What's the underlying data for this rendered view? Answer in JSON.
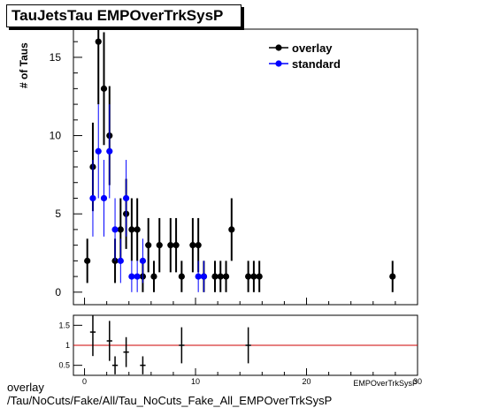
{
  "title": "TauJetsTau EMPOverTrkSysP",
  "footer": {
    "line1": "overlay",
    "line2": "/Tau/NoCuts/Fake/All/Tau_NoCuts_Fake_All_EMPOverTrkSysP"
  },
  "colors": {
    "overlay": "#000000",
    "standard": "#0000ff",
    "ratio_line": "#cc0000"
  },
  "chart_data": [
    {
      "type": "scatter",
      "ylabel": "# of Taus",
      "xlabel": "EMPOverTrkSysP",
      "xlim": [
        -1,
        30
      ],
      "ylim": [
        -0.8,
        16.8
      ],
      "xticks": [
        0,
        10,
        20,
        30
      ],
      "yticks": [
        0,
        5,
        10,
        15
      ],
      "legend": {
        "placement": "top-right",
        "entries": [
          "overlay",
          "standard"
        ]
      },
      "series": [
        {
          "name": "overlay",
          "points": [
            {
              "x": 0.25,
              "y": 2
            },
            {
              "x": 0.75,
              "y": 8
            },
            {
              "x": 1.25,
              "y": 16
            },
            {
              "x": 1.75,
              "y": 13
            },
            {
              "x": 2.25,
              "y": 10
            },
            {
              "x": 2.75,
              "y": 2
            },
            {
              "x": 3.25,
              "y": 4
            },
            {
              "x": 3.75,
              "y": 5
            },
            {
              "x": 4.25,
              "y": 4
            },
            {
              "x": 4.75,
              "y": 4
            },
            {
              "x": 5.25,
              "y": 1
            },
            {
              "x": 5.75,
              "y": 3
            },
            {
              "x": 6.25,
              "y": 1
            },
            {
              "x": 6.75,
              "y": 3
            },
            {
              "x": 7.75,
              "y": 3
            },
            {
              "x": 8.25,
              "y": 3
            },
            {
              "x": 8.75,
              "y": 1
            },
            {
              "x": 9.75,
              "y": 3
            },
            {
              "x": 10.25,
              "y": 3
            },
            {
              "x": 10.75,
              "y": 1
            },
            {
              "x": 11.75,
              "y": 1
            },
            {
              "x": 12.25,
              "y": 1
            },
            {
              "x": 12.75,
              "y": 1
            },
            {
              "x": 13.25,
              "y": 4
            },
            {
              "x": 14.75,
              "y": 1
            },
            {
              "x": 15.25,
              "y": 1
            },
            {
              "x": 15.75,
              "y": 1
            },
            {
              "x": 27.75,
              "y": 1
            }
          ]
        },
        {
          "name": "standard",
          "points": [
            {
              "x": 0.75,
              "y": 6
            },
            {
              "x": 1.25,
              "y": 9
            },
            {
              "x": 1.75,
              "y": 6
            },
            {
              "x": 2.25,
              "y": 9
            },
            {
              "x": 2.75,
              "y": 4
            },
            {
              "x": 3.25,
              "y": 2
            },
            {
              "x": 3.75,
              "y": 6
            },
            {
              "x": 4.25,
              "y": 1
            },
            {
              "x": 4.75,
              "y": 1
            },
            {
              "x": 5.25,
              "y": 2
            },
            {
              "x": 10.25,
              "y": 1
            },
            {
              "x": 10.75,
              "y": 1
            }
          ]
        }
      ]
    },
    {
      "type": "scatter",
      "xlim": [
        -1,
        30
      ],
      "ylim": [
        0.25,
        1.75
      ],
      "xticks": [
        0,
        10,
        20,
        30
      ],
      "yticks": [
        0.5,
        1,
        1.5
      ],
      "reference_line": 1,
      "series": [
        {
          "name": "",
          "points": [
            {
              "x": 0.75,
              "y": 1.33
            },
            {
              "x": 2.25,
              "y": 1.11
            },
            {
              "x": 2.75,
              "y": 0.5
            },
            {
              "x": 3.75,
              "y": 0.83
            },
            {
              "x": 5.25,
              "y": 0.5
            },
            {
              "x": 8.75,
              "y": 1.0
            },
            {
              "x": 14.75,
              "y": 1.0
            }
          ]
        }
      ]
    }
  ]
}
